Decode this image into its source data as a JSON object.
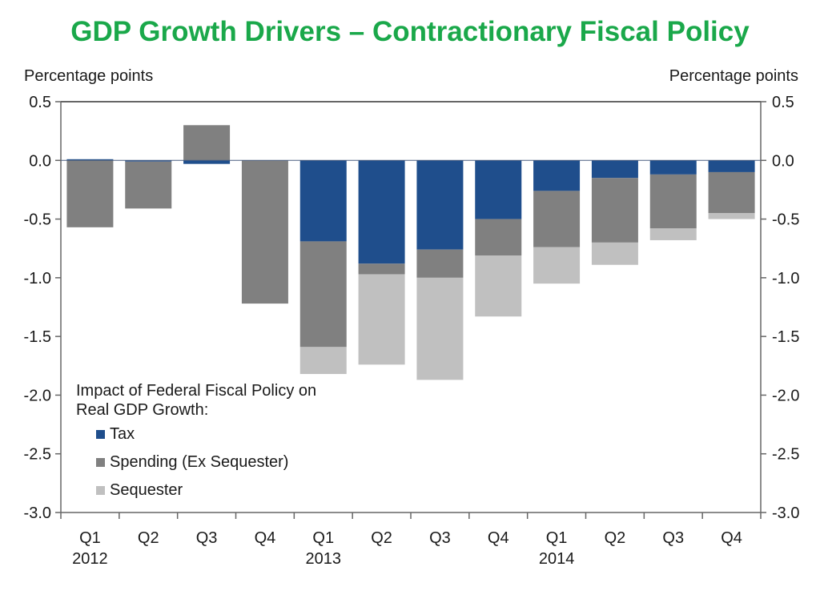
{
  "title": "GDP Growth Drivers – Contractionary Fiscal Policy",
  "chart_data": {
    "type": "bar",
    "stacked": true,
    "categories": [
      "Q1",
      "Q2",
      "Q3",
      "Q4",
      "Q1",
      "Q2",
      "Q3",
      "Q4",
      "Q1",
      "Q2",
      "Q3",
      "Q4"
    ],
    "years": [
      "2012",
      "",
      "",
      "",
      "2013",
      "",
      "",
      "",
      "2014",
      "",
      "",
      ""
    ],
    "ylabel_left": "Percentage points",
    "ylabel_right": "Percentage points",
    "ylim": [
      -3.0,
      0.5
    ],
    "yticks": [
      "0.5",
      "0.0",
      "-0.5",
      "-1.0",
      "-1.5",
      "-2.0",
      "-2.5",
      "-3.0"
    ],
    "ytick_values": [
      0.5,
      0.0,
      -0.5,
      -1.0,
      -1.5,
      -2.0,
      -2.5,
      -3.0
    ],
    "grid": false,
    "legend_position": "bottom-left",
    "legend_title": "Impact of Federal Fiscal Policy on Real GDP Growth:",
    "legend_title_lines": [
      "Impact of Federal Fiscal Policy on",
      "Real GDP Growth:"
    ],
    "series": [
      {
        "name": "Tax",
        "color": "#1f4e8c",
        "values": [
          0.01,
          -0.01,
          -0.03,
          0.0,
          -0.69,
          -0.88,
          -0.76,
          -0.5,
          -0.26,
          -0.15,
          -0.12,
          -0.1
        ]
      },
      {
        "name": "Spending (Ex Sequester)",
        "color": "#808080",
        "values": [
          -0.57,
          -0.4,
          0.3,
          -1.22,
          -0.9,
          -0.09,
          -0.24,
          -0.31,
          -0.48,
          -0.55,
          -0.46,
          -0.35
        ]
      },
      {
        "name": "Sequester",
        "color": "#c0c0c0",
        "values": [
          0.0,
          0.0,
          0.0,
          0.0,
          -0.23,
          -0.77,
          -0.87,
          -0.52,
          -0.31,
          -0.19,
          -0.1,
          -0.05
        ]
      }
    ]
  }
}
